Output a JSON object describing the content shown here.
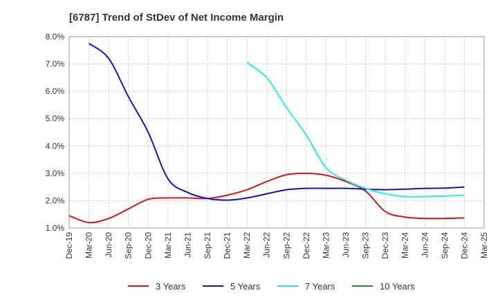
{
  "chart_data": {
    "type": "line",
    "title": "[6787]  Trend of StDev of Net Income Margin",
    "xlabel": "",
    "ylabel": "",
    "x": [
      "Dec-19",
      "Mar-20",
      "Jun-20",
      "Sep-20",
      "Dec-20",
      "Mar-21",
      "Jun-21",
      "Sep-21",
      "Dec-21",
      "Mar-22",
      "Jun-22",
      "Sep-22",
      "Dec-22",
      "Mar-23",
      "Jun-23",
      "Sep-23",
      "Dec-23",
      "Mar-24",
      "Jun-24",
      "Sep-24",
      "Dec-24",
      "Mar-25"
    ],
    "ylim": [
      1.0,
      8.0
    ],
    "yticks": [
      "1.0%",
      "2.0%",
      "3.0%",
      "4.0%",
      "5.0%",
      "6.0%",
      "7.0%",
      "8.0%"
    ],
    "grid": true,
    "legend_position": "bottom",
    "series": [
      {
        "name": "3 Years",
        "color": "#dd1111",
        "values": [
          1.45,
          1.2,
          1.35,
          1.7,
          2.05,
          2.1,
          2.1,
          2.08,
          2.2,
          2.4,
          2.7,
          2.95,
          3.0,
          2.93,
          2.7,
          2.35,
          1.6,
          1.4,
          1.35,
          1.35,
          1.37,
          null
        ]
      },
      {
        "name": "5 Years",
        "color": "#1111cc",
        "values": [
          null,
          7.75,
          7.2,
          5.8,
          4.5,
          2.8,
          2.3,
          2.08,
          2.02,
          2.1,
          2.25,
          2.4,
          2.45,
          2.45,
          2.45,
          2.42,
          2.4,
          2.42,
          2.45,
          2.46,
          2.5,
          null
        ]
      },
      {
        "name": "7 Years",
        "color": "#22eeee",
        "values": [
          null,
          null,
          null,
          null,
          null,
          null,
          null,
          null,
          null,
          7.05,
          6.5,
          5.4,
          4.4,
          3.2,
          2.75,
          2.45,
          2.25,
          2.15,
          2.15,
          2.17,
          2.2,
          null
        ]
      },
      {
        "name": "10 Years",
        "color": "#228822",
        "values": [
          null,
          null,
          null,
          null,
          null,
          null,
          null,
          null,
          null,
          null,
          null,
          null,
          null,
          null,
          null,
          null,
          null,
          null,
          null,
          null,
          null,
          null
        ]
      }
    ]
  }
}
